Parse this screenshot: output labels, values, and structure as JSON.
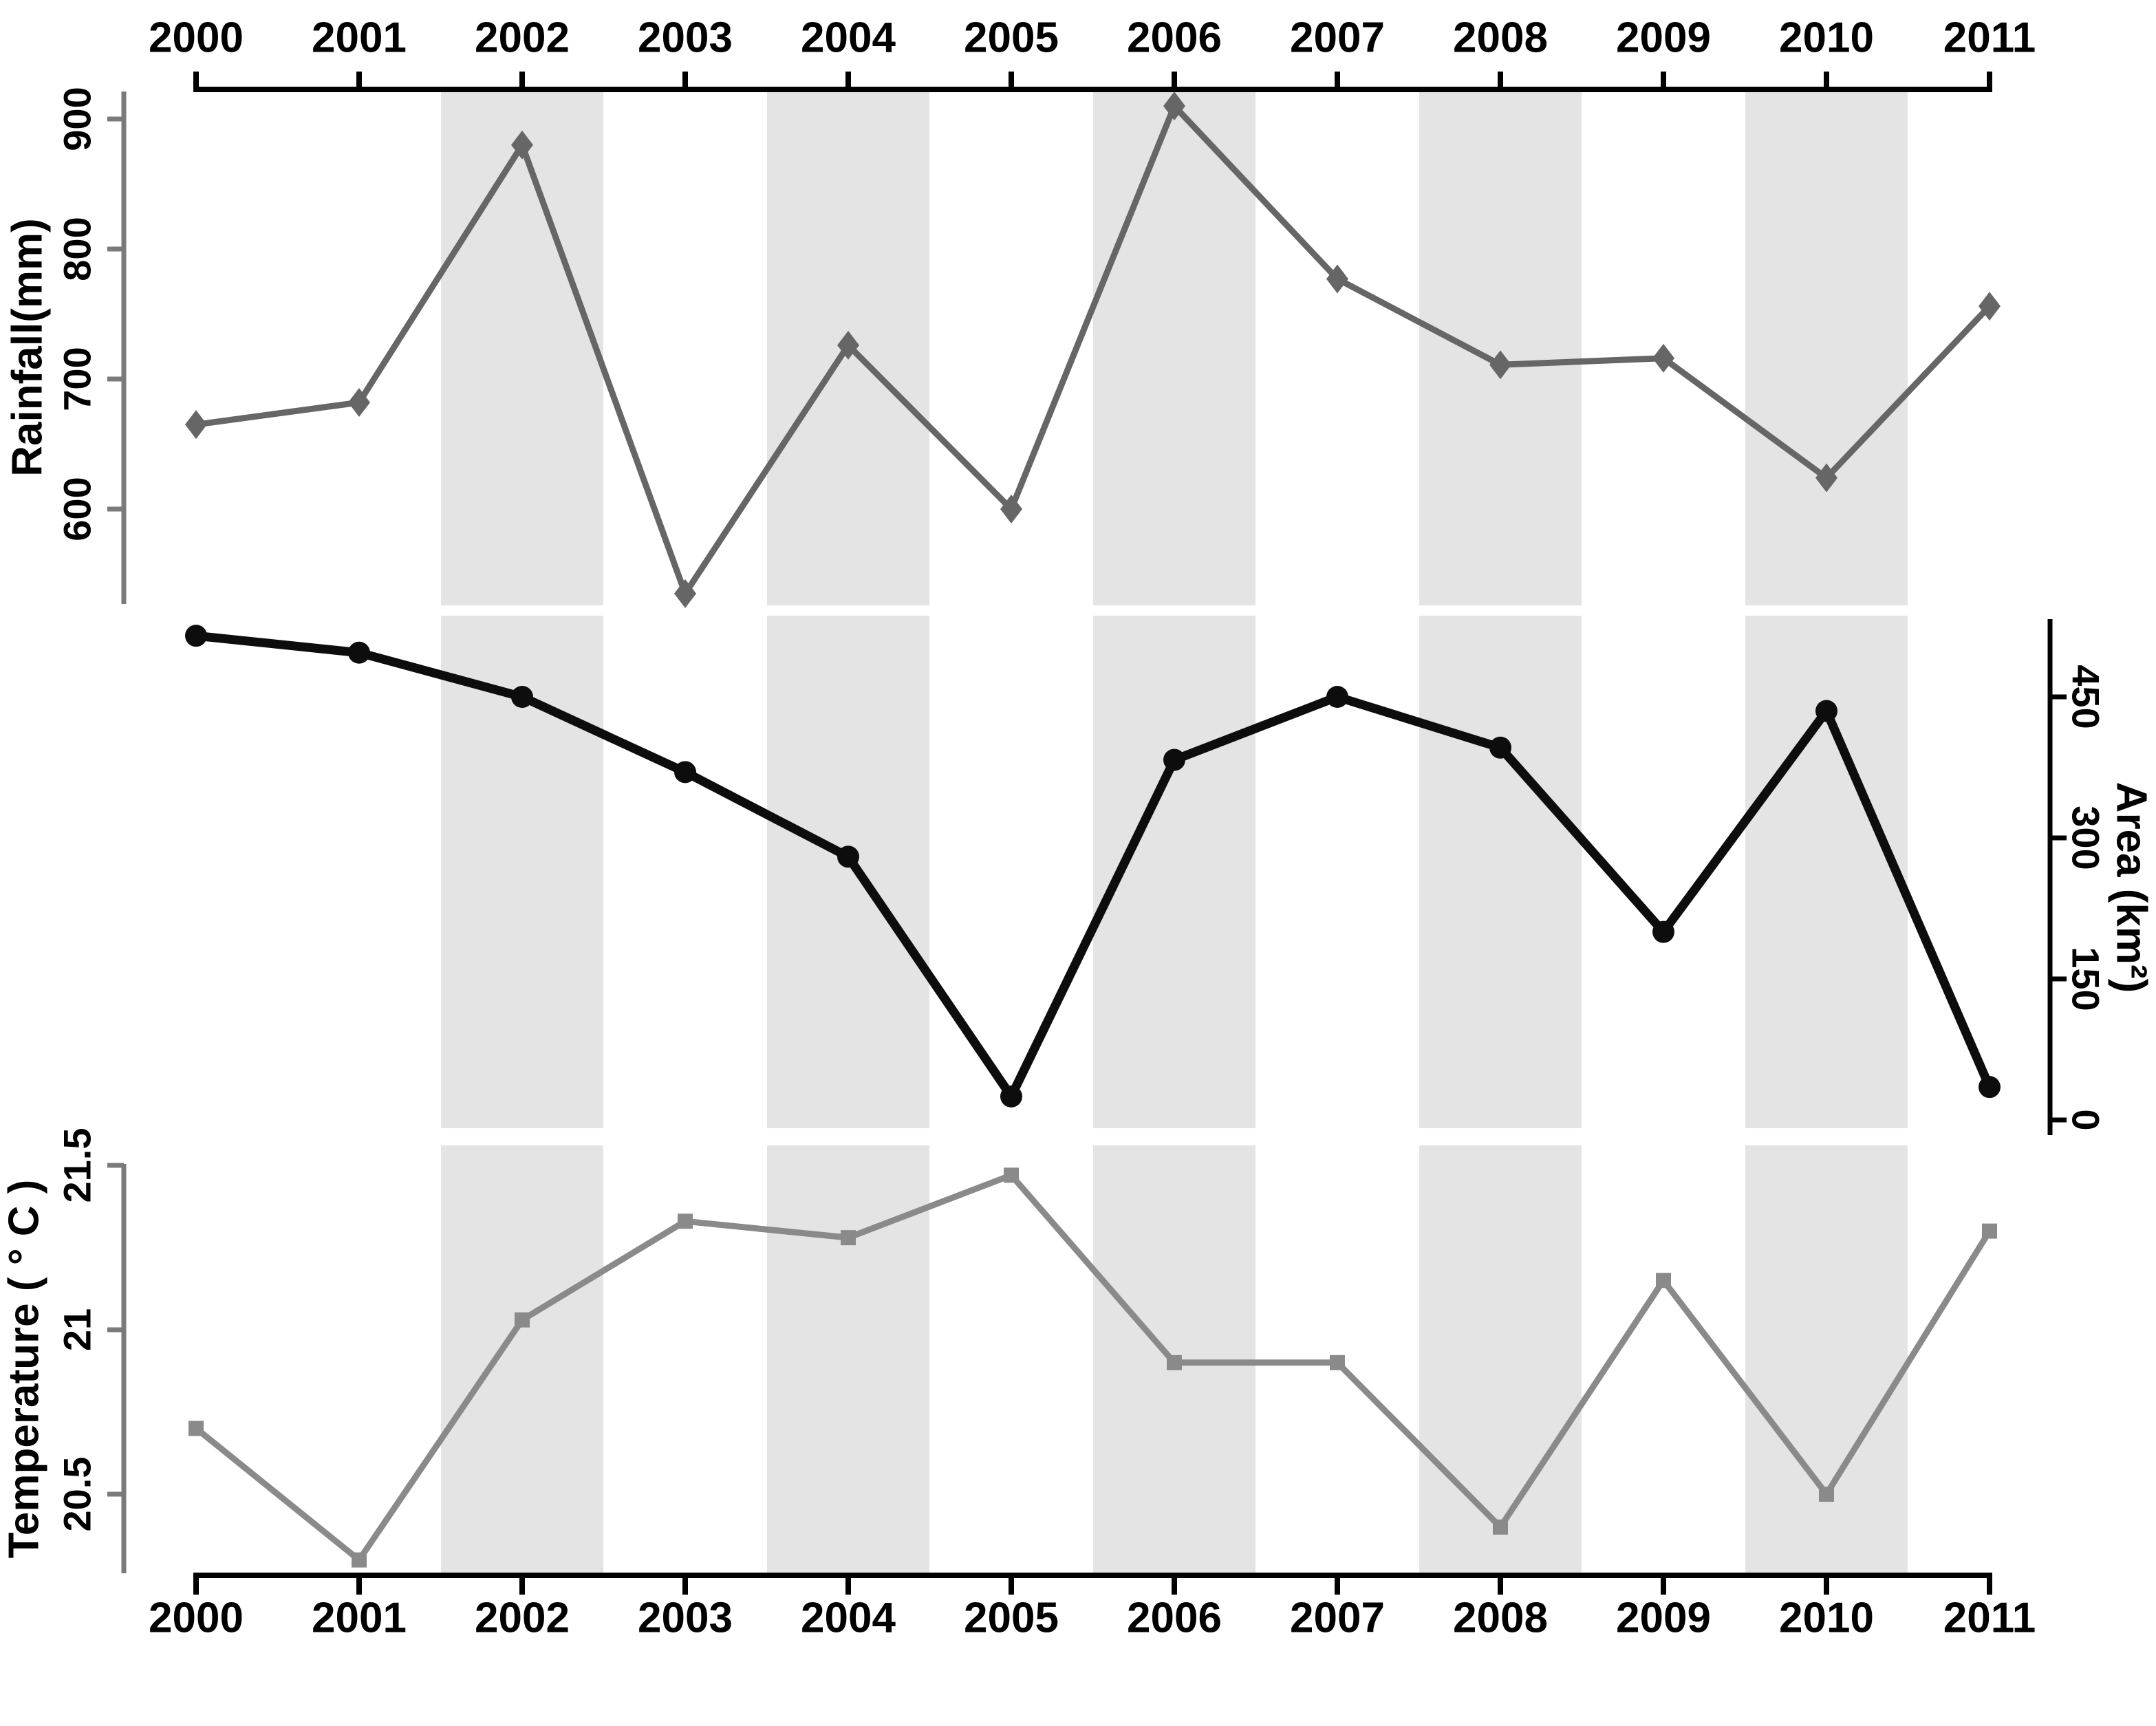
{
  "chart_data": {
    "type": "line",
    "title": "",
    "x_years": [
      "2000",
      "2001",
      "2002",
      "2003",
      "2004",
      "2005",
      "2006",
      "2007",
      "2008",
      "2009",
      "2010",
      "2011"
    ],
    "shaded_years": [
      "2002",
      "2004",
      "2006",
      "2008",
      "2010"
    ],
    "legend_position": "none",
    "grid": false,
    "colors": {
      "rainfall_line": "#666666",
      "area_line": "#0d0d0d",
      "temperature_line": "#8a8a8a",
      "band": "#e4e4e4",
      "gray_axis": "#7a7a7a",
      "black_axis": "#000000"
    },
    "series": [
      {
        "name": "Rainfall",
        "panel": "top",
        "axis_side": "left",
        "axis_label": "Rainfall(mm)",
        "marker": "diamond",
        "color_key": "rainfall_line",
        "ylim": [
          530,
          915
        ],
        "ticks": [
          {
            "label": "600",
            "v": 600
          },
          {
            "label": "700",
            "v": 700
          },
          {
            "label": "800",
            "v": 800
          },
          {
            "label": "900",
            "v": 900
          }
        ],
        "values": [
          665,
          682,
          880,
          535,
          726,
          600,
          910,
          777,
          711,
          716,
          624,
          756
        ]
      },
      {
        "name": "Area",
        "panel": "middle",
        "axis_side": "right",
        "axis_label": "Area (km²)",
        "marker": "circle",
        "color_key": "area_line",
        "ylim": [
          0,
          520
        ],
        "ticks": [
          {
            "label": "0",
            "v": 0
          },
          {
            "label": "150",
            "v": 150
          },
          {
            "label": "300",
            "v": 300
          },
          {
            "label": "450",
            "v": 450
          }
        ],
        "values": [
          515,
          497,
          450,
          370,
          280,
          25,
          383,
          450,
          396,
          200,
          435,
          35
        ]
      },
      {
        "name": "Temperature",
        "panel": "bottom",
        "axis_side": "left",
        "axis_label": "Temperature ( ° C )",
        "marker": "square",
        "color_key": "temperature_line",
        "ylim": [
          20.25,
          21.5
        ],
        "ticks": [
          {
            "label": "20.5",
            "v": 20.5
          },
          {
            "label": "21",
            "v": 21
          },
          {
            "label": "21.5",
            "v": 21.5
          }
        ],
        "values": [
          20.7,
          20.3,
          21.03,
          21.33,
          21.28,
          21.47,
          20.9,
          20.9,
          20.4,
          21.15,
          20.5,
          21.3
        ]
      }
    ]
  }
}
